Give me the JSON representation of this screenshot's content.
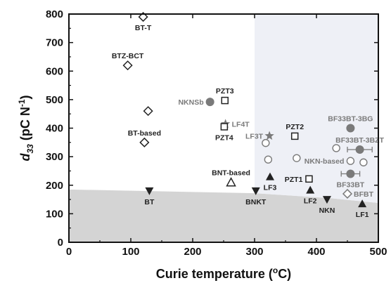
{
  "chart_data": {
    "type": "scatter",
    "xlabel": {
      "main": "Curie temperature (",
      "sup": "o",
      "tail": "C)"
    },
    "ylabel": {
      "main": "d",
      "sub": "33",
      "tail": " (pC N",
      "sup": "-1",
      "end": ")"
    },
    "xlim": [
      0,
      500
    ],
    "ylim": [
      0,
      800
    ],
    "xticks": [
      "0",
      "100",
      "200",
      "300",
      "400",
      "500"
    ],
    "yticks": [
      "0",
      "100",
      "200",
      "300",
      "400",
      "500",
      "600",
      "700",
      "800"
    ],
    "grid": false,
    "legend": "none",
    "colors": {
      "dark": "#222222",
      "grey": "#7a7a7a",
      "shade_lower": "#d4d4d4",
      "shade_upper": "#eef0f6"
    },
    "shaded_regions": [
      {
        "name": "lower-region",
        "polygon": [
          [
            0,
            0
          ],
          [
            0,
            185
          ],
          [
            300,
            172
          ],
          [
            420,
            155
          ],
          [
            500,
            138
          ],
          [
            500,
            0
          ]
        ]
      },
      {
        "name": "upper-right-region",
        "polygon": [
          [
            300,
            800
          ],
          [
            300,
            172
          ],
          [
            420,
            155
          ],
          [
            500,
            138
          ],
          [
            500,
            800
          ]
        ]
      }
    ],
    "points": [
      {
        "label": "BT-T",
        "x": 120,
        "y": 790,
        "marker": "diamond-open",
        "color": "dark",
        "label_pos": "below"
      },
      {
        "label": "BTZ-BCT",
        "x": 95,
        "y": 620,
        "marker": "diamond-open",
        "color": "dark",
        "label_pos": "above"
      },
      {
        "label": "",
        "x": 128,
        "y": 460,
        "marker": "diamond-open",
        "color": "dark"
      },
      {
        "label": "BT-based",
        "x": 122,
        "y": 350,
        "marker": "diamond-open",
        "color": "dark",
        "label_pos": "above"
      },
      {
        "label": "BT",
        "x": 130,
        "y": 180,
        "marker": "tri-down",
        "color": "dark",
        "label_pos": "below"
      },
      {
        "label": "NKNSb",
        "x": 228,
        "y": 492,
        "marker": "circle-filled",
        "color": "grey",
        "label_pos": "left"
      },
      {
        "label": "PZT3",
        "x": 252,
        "y": 497,
        "marker": "square-open",
        "color": "dark",
        "label_pos": "above"
      },
      {
        "label": "LF4T",
        "x": 253,
        "y": 415,
        "marker": "star",
        "color": "grey",
        "label_pos": "right"
      },
      {
        "label": "PZT4",
        "x": 251,
        "y": 405,
        "marker": "square-open",
        "color": "dark",
        "label_pos": "below"
      },
      {
        "label": "BNT-based",
        "x": 262,
        "y": 210,
        "marker": "tri-up-open",
        "color": "dark",
        "label_pos": "above"
      },
      {
        "label": "BNKT",
        "x": 302,
        "y": 180,
        "marker": "tri-down",
        "color": "dark",
        "label_pos": "below"
      },
      {
        "label": "LF3T",
        "x": 324,
        "y": 373,
        "marker": "star",
        "color": "grey",
        "label_pos": "left"
      },
      {
        "label": "",
        "x": 318,
        "y": 348,
        "marker": "circle-open",
        "color": "grey"
      },
      {
        "label": "",
        "x": 322,
        "y": 290,
        "marker": "circle-open",
        "color": "grey"
      },
      {
        "label": "LF3",
        "x": 325,
        "y": 230,
        "marker": "tri-up",
        "color": "dark",
        "label_pos": "below"
      },
      {
        "label": "PZT2",
        "x": 365,
        "y": 372,
        "marker": "square-open",
        "color": "dark",
        "label_pos": "above"
      },
      {
        "label": "PZT1",
        "x": 388,
        "y": 222,
        "marker": "square-open",
        "color": "dark",
        "label_pos": "left"
      },
      {
        "label": "LF2",
        "x": 390,
        "y": 183,
        "marker": "tri-up",
        "color": "dark",
        "label_pos": "below"
      },
      {
        "label": "NKN",
        "x": 417,
        "y": 150,
        "marker": "tri-down",
        "color": "dark",
        "label_pos": "below"
      },
      {
        "label": "",
        "x": 368,
        "y": 295,
        "marker": "circle-open",
        "color": "grey"
      },
      {
        "label": "",
        "x": 432,
        "y": 330,
        "marker": "circle-open",
        "color": "grey"
      },
      {
        "label": "NKN-based",
        "x": 455,
        "y": 285,
        "marker": "circle-open",
        "color": "grey",
        "label_pos": "left"
      },
      {
        "label": "",
        "x": 476,
        "y": 280,
        "marker": "circle-open",
        "color": "grey"
      },
      {
        "label": "BF33BT-3BG",
        "x": 455,
        "y": 400,
        "marker": "circle-filled",
        "color": "grey",
        "label_pos": "above"
      },
      {
        "label": "BF33BT-3BZT",
        "x": 470,
        "y": 325,
        "marker": "circle-filled",
        "color": "grey",
        "label_pos": "above",
        "xerr": 20
      },
      {
        "label": "BF33BT",
        "x": 455,
        "y": 240,
        "marker": "circle-filled",
        "color": "grey",
        "label_pos": "below",
        "xerr": 15
      },
      {
        "label": "BFBT",
        "x": 450,
        "y": 170,
        "marker": "diamond-open",
        "color": "grey",
        "label_pos": "right"
      },
      {
        "label": "LF1",
        "x": 474,
        "y": 135,
        "marker": "tri-up",
        "color": "dark",
        "label_pos": "below"
      }
    ]
  }
}
